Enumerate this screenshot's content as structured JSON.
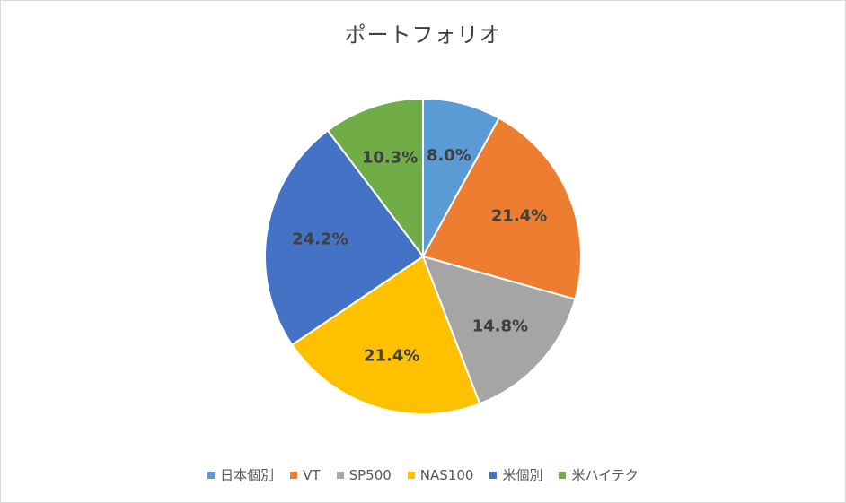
{
  "chart_data": {
    "type": "pie",
    "title": "ポートフォリオ",
    "categories": [
      "日本個別",
      "VT",
      "SP500",
      "NAS100",
      "米個別",
      "米ハイテク"
    ],
    "values": [
      8.0,
      21.4,
      14.8,
      21.4,
      24.2,
      10.3
    ],
    "labels": [
      "8.0%",
      "21.4%",
      "14.8%",
      "21.4%",
      "24.2%",
      "10.3%"
    ],
    "colors": [
      "#5b9bd5",
      "#ed7d31",
      "#a5a5a5",
      "#ffc000",
      "#4472c4",
      "#70ad47"
    ],
    "legend_position": "bottom"
  }
}
